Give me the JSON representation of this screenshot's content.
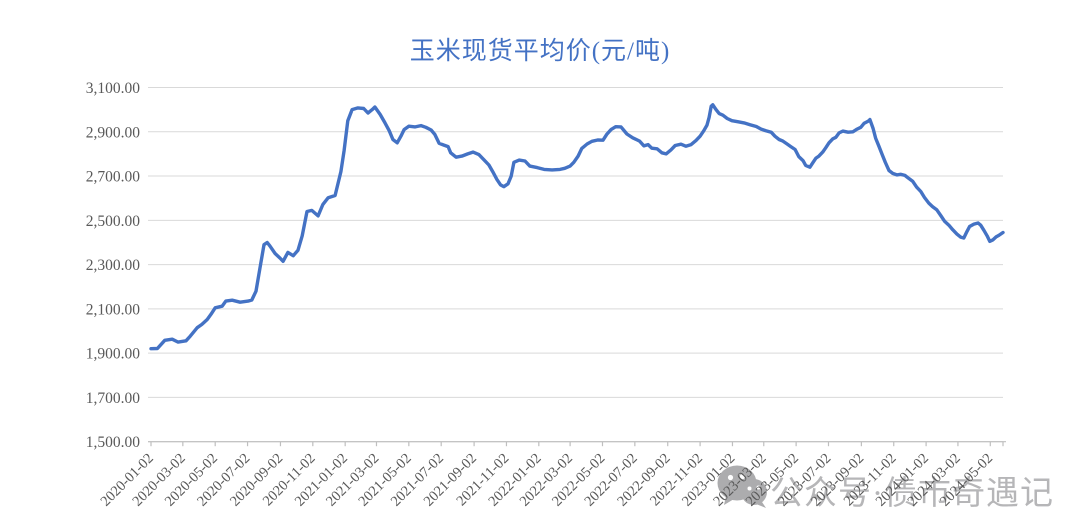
{
  "title": {
    "text": "玉米现货平均价(元/吨)"
  },
  "watermark": {
    "text": "公众号·债市奇遇记",
    "icon": "wechat-logo"
  },
  "colors": {
    "line": "#4472C4",
    "title": "#4472C4",
    "grid": "#D9D9D9",
    "axis": "#BFBFBF",
    "tick_label": "#595959",
    "watermark_text": "#B6B6B8",
    "watermark_logo": "#ACACAE",
    "background": "#FFFFFF"
  },
  "chart_data": {
    "type": "line",
    "title": "玉米现货平均价(元/吨)",
    "xlabel": "",
    "ylabel": "",
    "grid": true,
    "legend": false,
    "y_axis": {
      "min": 1500,
      "max": 3100,
      "step": 200,
      "labels": [
        "3,100.00",
        "2,900.00",
        "2,700.00",
        "2,500.00",
        "2,300.00",
        "2,100.00",
        "1,900.00",
        "1,700.00",
        "1,500.00"
      ]
    },
    "x_axis": {
      "tick_interval": "2 months",
      "label_rotation_deg": -45,
      "labels": [
        "2020-01-02",
        "2020-03-02",
        "2020-05-02",
        "2020-07-02",
        "2020-09-02",
        "2020-11-02",
        "2021-01-02",
        "2021-03-02",
        "2021-05-02",
        "2021-07-02",
        "2021-09-02",
        "2021-11-02",
        "2022-01-02",
        "2022-03-02",
        "2022-05-02",
        "2022-07-02",
        "2022-09-02",
        "2022-11-02",
        "2023-01-02",
        "2023-03-02",
        "2023-05-02",
        "2023-07-02",
        "2023-09-02",
        "2023-11-02",
        "2024-01-02",
        "2024-03-02",
        "2024-05-02"
      ]
    },
    "series": [
      {
        "color": "#4472C4",
        "points": [
          [
            "2020-01-02",
            1920
          ],
          [
            "2020-01-14",
            1921
          ],
          [
            "2020-01-28",
            1958
          ],
          [
            "2020-02-11",
            1963
          ],
          [
            "2020-02-22",
            1950
          ],
          [
            "2020-03-08",
            1956
          ],
          [
            "2020-03-16",
            1977
          ],
          [
            "2020-03-29",
            2015
          ],
          [
            "2020-04-07",
            2030
          ],
          [
            "2020-04-17",
            2052
          ],
          [
            "2020-04-24",
            2075
          ],
          [
            "2020-05-02",
            2105
          ],
          [
            "2020-05-15",
            2112
          ],
          [
            "2020-05-22",
            2135
          ],
          [
            "2020-06-03",
            2139
          ],
          [
            "2020-06-18",
            2130
          ],
          [
            "2020-07-03",
            2135
          ],
          [
            "2020-07-10",
            2140
          ],
          [
            "2020-07-18",
            2180
          ],
          [
            "2020-07-25",
            2280
          ],
          [
            "2020-08-02",
            2390
          ],
          [
            "2020-08-08",
            2400
          ],
          [
            "2020-08-13",
            2385
          ],
          [
            "2020-08-23",
            2350
          ],
          [
            "2020-09-01",
            2330
          ],
          [
            "2020-09-07",
            2315
          ],
          [
            "2020-09-16",
            2355
          ],
          [
            "2020-09-26",
            2340
          ],
          [
            "2020-10-05",
            2365
          ],
          [
            "2020-10-13",
            2430
          ],
          [
            "2020-10-22",
            2540
          ],
          [
            "2020-10-31",
            2545
          ],
          [
            "2020-11-12",
            2520
          ],
          [
            "2020-11-21",
            2572
          ],
          [
            "2020-12-01",
            2602
          ],
          [
            "2020-12-14",
            2612
          ],
          [
            "2020-12-25",
            2720
          ],
          [
            "2020-12-31",
            2815
          ],
          [
            "2021-01-07",
            2950
          ],
          [
            "2021-01-15",
            3000
          ],
          [
            "2021-01-26",
            3008
          ],
          [
            "2021-02-06",
            3005
          ],
          [
            "2021-02-14",
            2985
          ],
          [
            "2021-02-22",
            3000
          ],
          [
            "2021-02-27",
            3012
          ],
          [
            "2021-03-09",
            2978
          ],
          [
            "2021-03-18",
            2940
          ],
          [
            "2021-03-26",
            2905
          ],
          [
            "2021-04-02",
            2865
          ],
          [
            "2021-04-10",
            2850
          ],
          [
            "2021-04-17",
            2880
          ],
          [
            "2021-04-23",
            2910
          ],
          [
            "2021-05-02",
            2925
          ],
          [
            "2021-05-14",
            2922
          ],
          [
            "2021-05-25",
            2928
          ],
          [
            "2021-06-03",
            2920
          ],
          [
            "2021-06-13",
            2908
          ],
          [
            "2021-06-20",
            2888
          ],
          [
            "2021-06-28",
            2848
          ],
          [
            "2021-07-07",
            2840
          ],
          [
            "2021-07-15",
            2833
          ],
          [
            "2021-07-20",
            2805
          ],
          [
            "2021-07-30",
            2785
          ],
          [
            "2021-08-10",
            2790
          ],
          [
            "2021-08-21",
            2800
          ],
          [
            "2021-08-31",
            2808
          ],
          [
            "2021-09-11",
            2797
          ],
          [
            "2021-09-20",
            2775
          ],
          [
            "2021-09-30",
            2750
          ],
          [
            "2021-10-07",
            2720
          ],
          [
            "2021-10-15",
            2685
          ],
          [
            "2021-10-22",
            2660
          ],
          [
            "2021-10-28",
            2652
          ],
          [
            "2021-11-05",
            2665
          ],
          [
            "2021-11-11",
            2700
          ],
          [
            "2021-11-16",
            2762
          ],
          [
            "2021-11-26",
            2772
          ],
          [
            "2021-12-07",
            2768
          ],
          [
            "2021-12-16",
            2745
          ],
          [
            "2021-12-30",
            2738
          ],
          [
            "2022-01-12",
            2730
          ],
          [
            "2022-01-27",
            2728
          ],
          [
            "2022-02-11",
            2730
          ],
          [
            "2022-02-20",
            2735
          ],
          [
            "2022-03-02",
            2745
          ],
          [
            "2022-03-09",
            2762
          ],
          [
            "2022-03-17",
            2790
          ],
          [
            "2022-03-24",
            2825
          ],
          [
            "2022-04-03",
            2845
          ],
          [
            "2022-04-12",
            2857
          ],
          [
            "2022-04-23",
            2863
          ],
          [
            "2022-05-03",
            2862
          ],
          [
            "2022-05-10",
            2888
          ],
          [
            "2022-05-18",
            2910
          ],
          [
            "2022-05-27",
            2923
          ],
          [
            "2022-06-06",
            2922
          ],
          [
            "2022-06-17",
            2890
          ],
          [
            "2022-06-28",
            2873
          ],
          [
            "2022-07-11",
            2858
          ],
          [
            "2022-07-19",
            2836
          ],
          [
            "2022-07-27",
            2842
          ],
          [
            "2022-08-03",
            2826
          ],
          [
            "2022-08-13",
            2823
          ],
          [
            "2022-08-22",
            2805
          ],
          [
            "2022-08-30",
            2800
          ],
          [
            "2022-09-08",
            2818
          ],
          [
            "2022-09-16",
            2838
          ],
          [
            "2022-09-27",
            2844
          ],
          [
            "2022-10-06",
            2835
          ],
          [
            "2022-10-16",
            2842
          ],
          [
            "2022-10-25",
            2860
          ],
          [
            "2022-11-02",
            2880
          ],
          [
            "2022-11-09",
            2905
          ],
          [
            "2022-11-15",
            2930
          ],
          [
            "2022-11-19",
            2965
          ],
          [
            "2022-11-23",
            3015
          ],
          [
            "2022-11-26",
            3022
          ],
          [
            "2022-12-02",
            3000
          ],
          [
            "2022-12-08",
            2982
          ],
          [
            "2022-12-15",
            2975
          ],
          [
            "2022-12-23",
            2960
          ],
          [
            "2023-01-01",
            2950
          ],
          [
            "2023-01-13",
            2945
          ],
          [
            "2023-01-24",
            2940
          ],
          [
            "2023-02-04",
            2932
          ],
          [
            "2023-02-16",
            2924
          ],
          [
            "2023-02-25",
            2912
          ],
          [
            "2023-03-06",
            2905
          ],
          [
            "2023-03-16",
            2898
          ],
          [
            "2023-03-23",
            2880
          ],
          [
            "2023-03-31",
            2865
          ],
          [
            "2023-04-07",
            2858
          ],
          [
            "2023-04-15",
            2845
          ],
          [
            "2023-04-22",
            2833
          ],
          [
            "2023-04-30",
            2820
          ],
          [
            "2023-05-07",
            2788
          ],
          [
            "2023-05-15",
            2770
          ],
          [
            "2023-05-20",
            2748
          ],
          [
            "2023-05-28",
            2740
          ],
          [
            "2023-06-03",
            2762
          ],
          [
            "2023-06-08",
            2780
          ],
          [
            "2023-06-14",
            2790
          ],
          [
            "2023-06-21",
            2808
          ],
          [
            "2023-06-27",
            2828
          ],
          [
            "2023-07-03",
            2850
          ],
          [
            "2023-07-10",
            2868
          ],
          [
            "2023-07-16",
            2875
          ],
          [
            "2023-07-22",
            2895
          ],
          [
            "2023-07-29",
            2903
          ],
          [
            "2023-08-08",
            2898
          ],
          [
            "2023-08-17",
            2900
          ],
          [
            "2023-08-25",
            2912
          ],
          [
            "2023-09-01",
            2920
          ],
          [
            "2023-09-07",
            2938
          ],
          [
            "2023-09-15",
            2948
          ],
          [
            "2023-09-18",
            2955
          ],
          [
            "2023-09-24",
            2915
          ],
          [
            "2023-09-29",
            2870
          ],
          [
            "2023-10-05",
            2835
          ],
          [
            "2023-10-11",
            2798
          ],
          [
            "2023-10-17",
            2762
          ],
          [
            "2023-10-24",
            2725
          ],
          [
            "2023-10-31",
            2712
          ],
          [
            "2023-11-08",
            2705
          ],
          [
            "2023-11-15",
            2708
          ],
          [
            "2023-11-23",
            2703
          ],
          [
            "2023-11-30",
            2690
          ],
          [
            "2023-12-08",
            2676
          ],
          [
            "2023-12-15",
            2650
          ],
          [
            "2023-12-23",
            2630
          ],
          [
            "2023-12-30",
            2603
          ],
          [
            "2024-01-07",
            2578
          ],
          [
            "2024-01-14",
            2562
          ],
          [
            "2024-01-22",
            2548
          ],
          [
            "2024-01-30",
            2520
          ],
          [
            "2024-02-06",
            2495
          ],
          [
            "2024-02-14",
            2478
          ],
          [
            "2024-02-21",
            2458
          ],
          [
            "2024-02-29",
            2438
          ],
          [
            "2024-03-07",
            2424
          ],
          [
            "2024-03-13",
            2420
          ],
          [
            "2024-03-19",
            2450
          ],
          [
            "2024-03-24",
            2472
          ],
          [
            "2024-04-01",
            2483
          ],
          [
            "2024-04-09",
            2488
          ],
          [
            "2024-04-14",
            2478
          ],
          [
            "2024-04-20",
            2455
          ],
          [
            "2024-04-26",
            2430
          ],
          [
            "2024-05-01",
            2405
          ],
          [
            "2024-05-07",
            2412
          ],
          [
            "2024-05-13",
            2425
          ],
          [
            "2024-05-18",
            2432
          ],
          [
            "2024-05-26",
            2445
          ]
        ]
      }
    ]
  }
}
